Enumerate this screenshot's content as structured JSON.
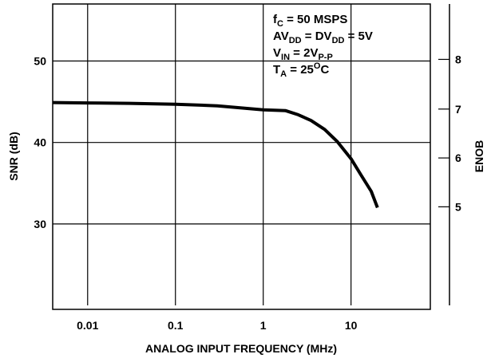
{
  "chart_data": {
    "type": "line",
    "title": "",
    "xlabel": "ANALOG INPUT FREQUENCY (MHz)",
    "ylabel": "SNR (dB)",
    "y2label": "ENOB",
    "x_scale": "log",
    "xlim": [
      0.004,
      80
    ],
    "ylim": [
      20,
      57
    ],
    "x_ticks": [
      {
        "value": 0.01,
        "label": "0.01"
      },
      {
        "value": 0.1,
        "label": "0.1"
      },
      {
        "value": 1,
        "label": "1"
      },
      {
        "value": 10,
        "label": "10"
      }
    ],
    "y_ticks": [
      {
        "value": 30,
        "label": "30"
      },
      {
        "value": 40,
        "label": "40"
      },
      {
        "value": 50,
        "label": "50"
      }
    ],
    "y2_ticks": [
      {
        "value": 5,
        "snr": 32.1,
        "label": "5"
      },
      {
        "value": 6,
        "snr": 38.1,
        "label": "6"
      },
      {
        "value": 7,
        "snr": 44.1,
        "label": "7"
      },
      {
        "value": 8,
        "snr": 50.2,
        "label": "8"
      }
    ],
    "grid": true,
    "series": [
      {
        "x": [
          0.004,
          0.01,
          0.03,
          0.1,
          0.3,
          1,
          1.8,
          2.5,
          3.5,
          5,
          7,
          10,
          13,
          17,
          20
        ],
        "y": [
          44.9,
          44.85,
          44.8,
          44.7,
          44.5,
          44.0,
          43.9,
          43.4,
          42.7,
          41.6,
          40.1,
          38.0,
          36.0,
          34.0,
          32.0
        ]
      }
    ],
    "annotation": {
      "lines": [
        {
          "parts": [
            {
              "text": "f",
              "sub": false
            },
            {
              "text": "C",
              "sub": true
            },
            {
              "text": " = 50 MSPS",
              "sub": false
            }
          ]
        },
        {
          "parts": [
            {
              "text": "AV",
              "sub": false
            },
            {
              "text": "DD",
              "sub": true
            },
            {
              "text": " = DV",
              "sub": false
            },
            {
              "text": "DD",
              "sub": true
            },
            {
              "text": " = 5V",
              "sub": false
            }
          ]
        },
        {
          "parts": [
            {
              "text": "V",
              "sub": false
            },
            {
              "text": "IN",
              "sub": true
            },
            {
              "text": " = 2V",
              "sub": false
            },
            {
              "text": "P-P",
              "sub": true
            }
          ]
        },
        {
          "parts": [
            {
              "text": "T",
              "sub": false
            },
            {
              "text": "A",
              "sub": true
            },
            {
              "text": " = 25",
              "sub": false
            },
            {
              "text": "O",
              "sup": true
            },
            {
              "text": "C",
              "sub": false
            }
          ]
        }
      ]
    }
  }
}
